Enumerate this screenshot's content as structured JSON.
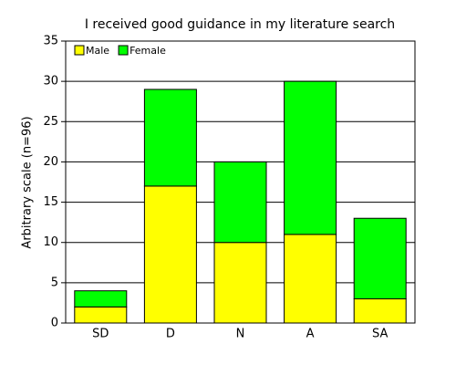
{
  "chart_data": {
    "type": "stacked_bar",
    "title": "I received good guidance in my literature search",
    "y_label": "Arbitrary scale (n=96)",
    "categories": [
      "SD",
      "D",
      "N",
      "A",
      "SA"
    ],
    "series": [
      {
        "name": "Male",
        "color": "#ffff00",
        "values": [
          2,
          17,
          10,
          11,
          3
        ]
      },
      {
        "name": "Female",
        "color": "#00ff00",
        "values": [
          2,
          12,
          10,
          19,
          10
        ]
      }
    ],
    "ylim": [
      0,
      35
    ],
    "yticks": [
      0,
      5,
      10,
      15,
      20,
      25,
      30,
      35
    ],
    "grid": true,
    "legend": "top-left"
  }
}
